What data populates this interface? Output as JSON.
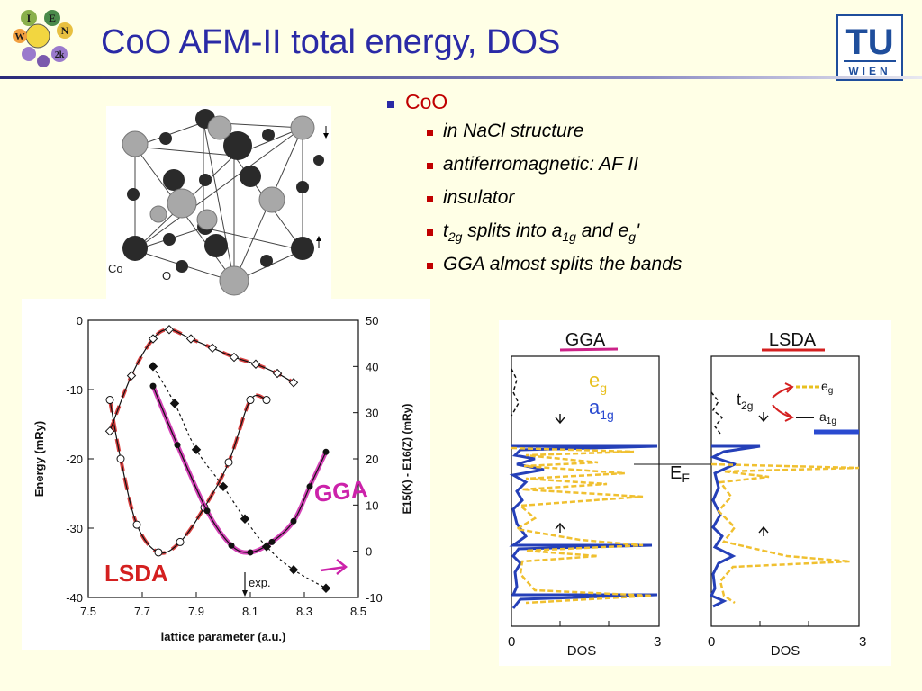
{
  "slide": {
    "title": "CoO AFM-II total energy, DOS",
    "logo_left_letters": [
      "I",
      "E",
      "W",
      "N",
      "2k"
    ],
    "logo_right_text": "TU",
    "logo_right_subtext": "WIEN"
  },
  "bullets": {
    "main": "CoO",
    "items": [
      {
        "text": "in NaCl structure"
      },
      {
        "text": "antiferromagnetic: AF II"
      },
      {
        "text": "insulator"
      },
      {
        "t": "t",
        "t_sub": "2g",
        "mid": " splits  into a",
        "a_sub": "1g",
        "and": " and e",
        "e_sub": "g",
        "tail": "'"
      },
      {
        "text": "GGA almost splits the bands"
      }
    ]
  },
  "crystal": {
    "label_co": "Co",
    "label_o": "O",
    "colors": {
      "co": "#2a2a2a",
      "o": "#a8a8a8"
    }
  },
  "energy_plot": {
    "chart_data": {
      "type": "line",
      "xlabel": "lattice parameter (a.u.)",
      "ylabel_left": "Energy (mRy)",
      "ylabel_right": "E15(K) - E16(Z)  (mRy)",
      "xlim": [
        7.5,
        8.5
      ],
      "ylim_left": [
        -40,
        0
      ],
      "ylim_right": [
        -10,
        50
      ],
      "x_ticks": [
        "7.5",
        "7.7",
        "7.9",
        "8.1",
        "8.3",
        "8.5"
      ],
      "y_left_ticks": [
        "0",
        "-10",
        "-20",
        "-30",
        "-40"
      ],
      "y_right_ticks": [
        "50",
        "40",
        "30",
        "20",
        "10",
        "0",
        "-10"
      ],
      "series": [
        {
          "name": "LSDA",
          "axis": "left",
          "color": "#d42020",
          "marker": "open-circle",
          "x": [
            7.58,
            7.62,
            7.68,
            7.76,
            7.84,
            7.93,
            8.02,
            8.1,
            8.16
          ],
          "y": [
            -11.5,
            -20,
            -29.5,
            -33.5,
            -32,
            -27,
            -20.5,
            -11.5,
            -11.5
          ]
        },
        {
          "name": "GGA",
          "axis": "left",
          "color": "#cc22aa",
          "marker": "filled-circle",
          "x": [
            7.74,
            7.83,
            7.94,
            8.03,
            8.1,
            8.18,
            8.26,
            8.32,
            8.38
          ],
          "y": [
            -9.5,
            -18,
            -27.5,
            -32.5,
            -33.5,
            -32,
            -29,
            -24,
            -19
          ]
        },
        {
          "name": "",
          "axis": "right",
          "color": "#d42020",
          "marker": "open-diamond",
          "x": [
            7.58,
            7.66,
            7.74,
            7.8,
            7.88,
            7.96,
            8.04,
            8.12,
            8.2,
            8.26
          ],
          "y": [
            26,
            38,
            46,
            48,
            46,
            44,
            42,
            40.5,
            38.5,
            36.5
          ]
        },
        {
          "name": "",
          "axis": "right",
          "color": "#000000",
          "marker": "filled-diamond",
          "x": [
            7.74,
            7.82,
            7.9,
            8,
            8.08,
            8.16,
            8.26,
            8.38
          ],
          "y": [
            40,
            32,
            22,
            14,
            7,
            1,
            -4,
            -8
          ]
        }
      ],
      "annotations": [
        {
          "text": "exp.",
          "x": 8.08
        },
        {
          "text": "LSDA",
          "color": "#d42020"
        },
        {
          "text": "GGA",
          "color": "#cc22aa"
        }
      ]
    }
  },
  "dos_plot": {
    "chart_data": {
      "type": "line",
      "panels": [
        {
          "title": "GGA",
          "title_color": "#cc2288",
          "eg_label": "e",
          "eg_sub": "g",
          "a1g_label": "a",
          "a1g_sub": "1g"
        },
        {
          "title": "LSDA",
          "title_color": "#d42020",
          "t2g_label": "t",
          "t2g_sub": "2g",
          "eg_label": "e",
          "eg_sub": "g",
          "a1g_label": "a",
          "a1g_sub": "1g"
        }
      ],
      "xlabel": "DOS",
      "xlim": [
        0,
        3
      ],
      "x_ticks": [
        "0",
        "3"
      ],
      "ef_label": "E",
      "ef_sub": "F",
      "colors": {
        "spin": "#2540b8",
        "dashed": "#f0c030",
        "eg": "#e8c020",
        "a1g": "#2a4ad0"
      }
    }
  }
}
